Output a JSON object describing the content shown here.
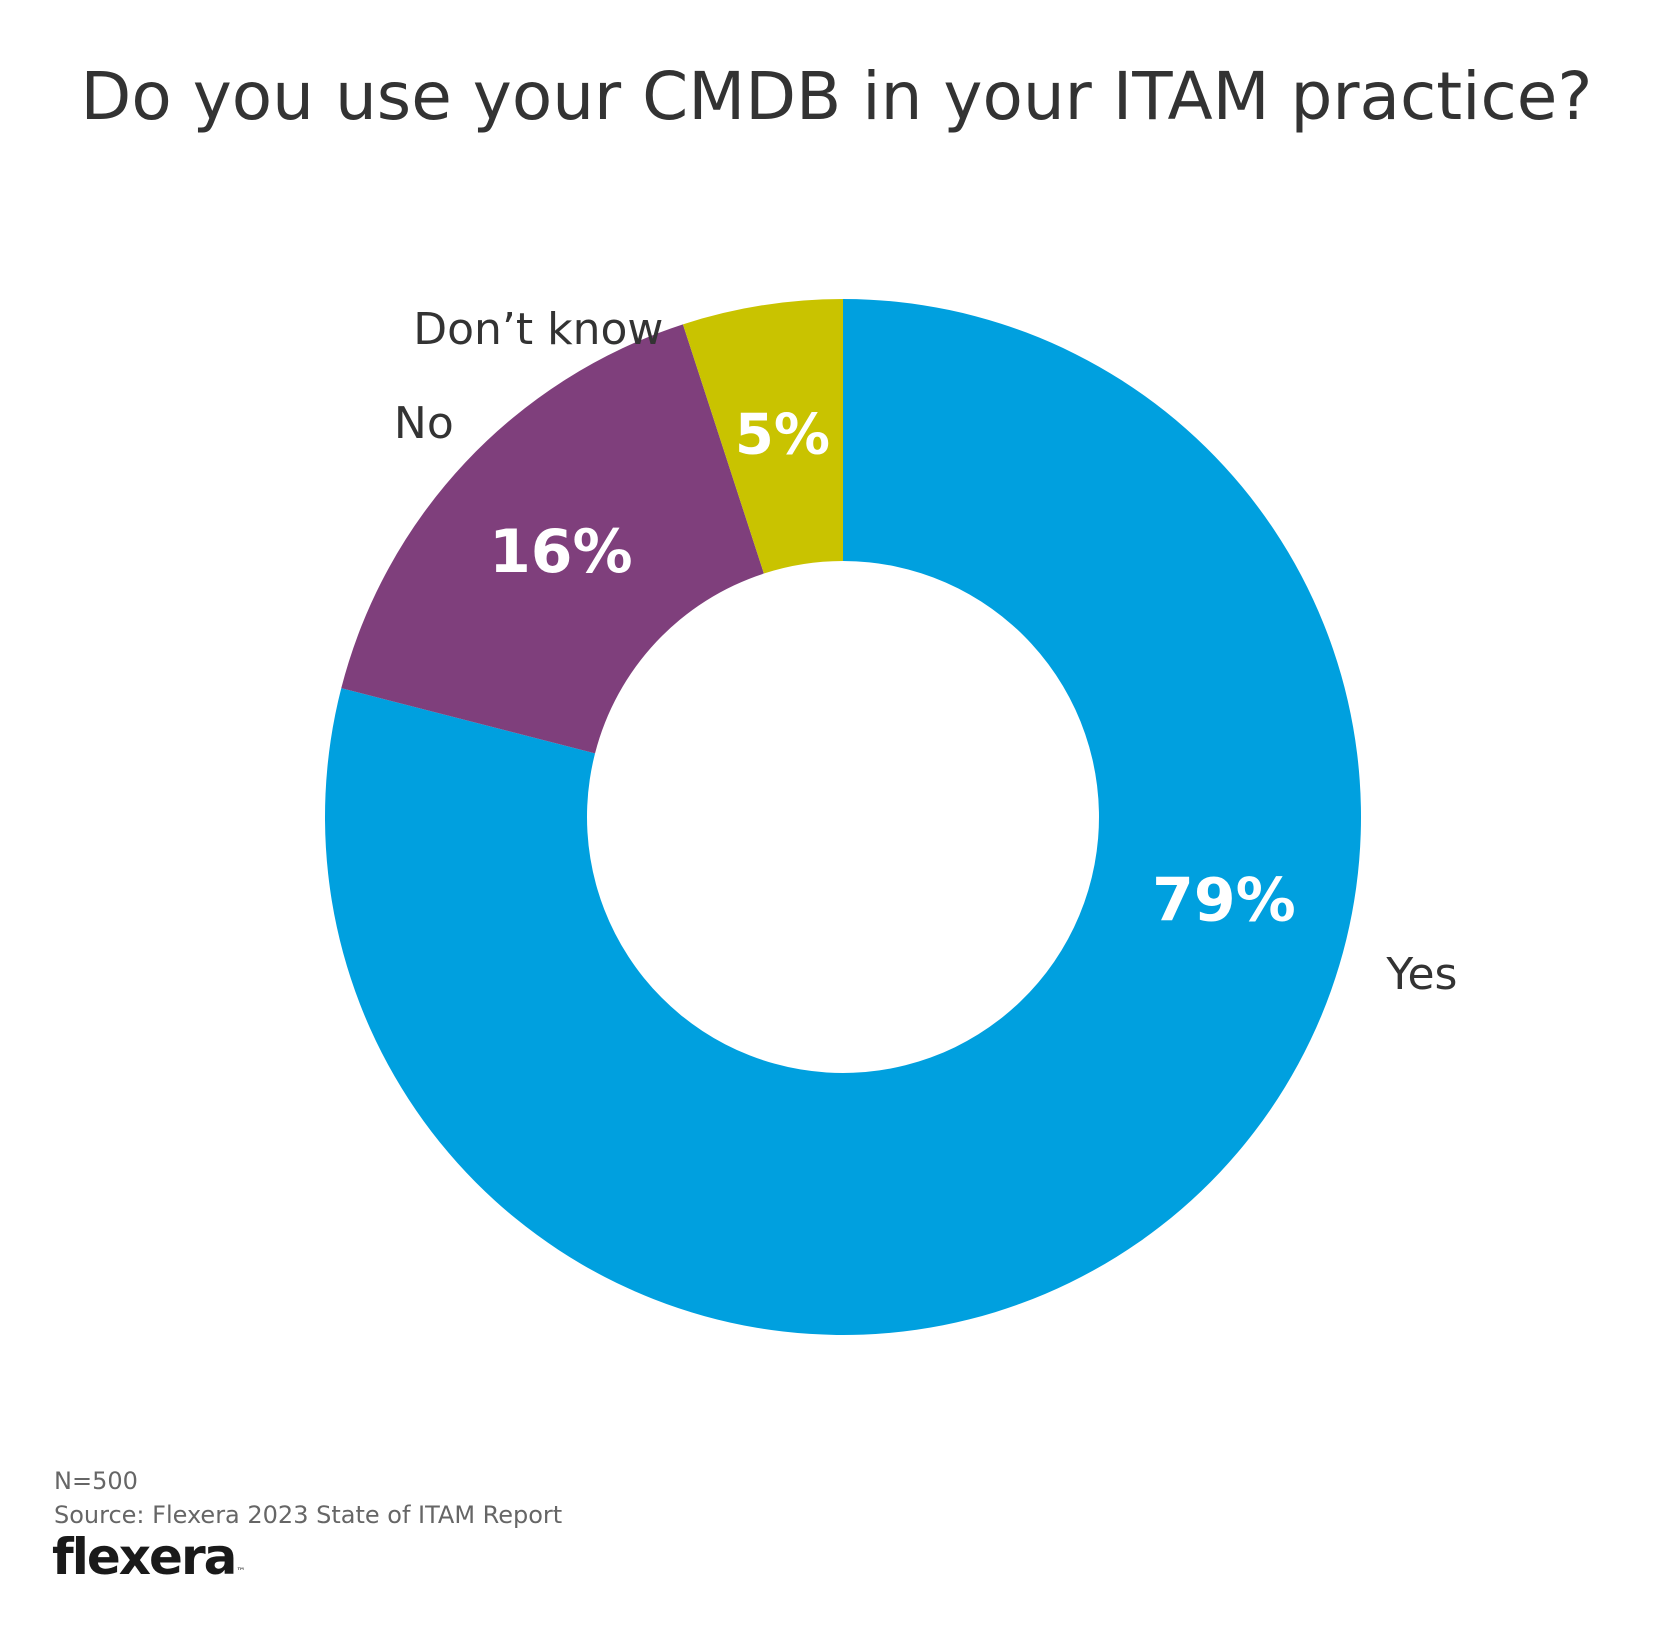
{
  "chart_data": {
    "type": "pie",
    "style": "donut",
    "title": "Do you use your CMDB in your ITAM practice?",
    "slices": [
      {
        "label": "Yes",
        "value": 79,
        "value_label": "79%",
        "color": "#00A0DF"
      },
      {
        "label": "No",
        "value": 16,
        "value_label": "16%",
        "color": "#7F3F7C"
      },
      {
        "label": "Don’t know",
        "value": 5,
        "value_label": "5%",
        "color": "#C9C300"
      }
    ],
    "start": "12 o'clock",
    "direction": "clockwise"
  },
  "footer": {
    "n": "N=500",
    "source": "Source: Flexera 2023 State of ITAM Report"
  },
  "logo": {
    "text": "flexera",
    "tm": "™"
  }
}
